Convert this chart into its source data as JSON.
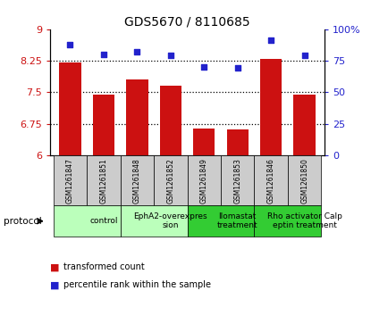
{
  "title": "GDS5670 / 8110685",
  "samples": [
    "GSM1261847",
    "GSM1261851",
    "GSM1261848",
    "GSM1261852",
    "GSM1261849",
    "GSM1261853",
    "GSM1261846",
    "GSM1261850"
  ],
  "bar_values": [
    8.2,
    7.45,
    7.8,
    7.65,
    6.63,
    6.62,
    8.3,
    7.45
  ],
  "scatter_values": [
    88,
    80,
    82,
    79,
    70,
    69,
    91,
    79
  ],
  "bar_color": "#cc1111",
  "scatter_color": "#2222cc",
  "ylim_left": [
    6,
    9
  ],
  "ylim_right": [
    0,
    100
  ],
  "yticks_left": [
    6,
    6.75,
    7.5,
    8.25,
    9
  ],
  "yticks_right": [
    0,
    25,
    50,
    75,
    100
  ],
  "ytick_labels_left": [
    "6",
    "6.75",
    "7.5",
    "8.25",
    "9"
  ],
  "ytick_labels_right": [
    "0",
    "25",
    "50",
    "75",
    "100%"
  ],
  "hlines": [
    6.75,
    7.5,
    8.25
  ],
  "protocol_groups": [
    {
      "label": "control",
      "start": 0,
      "end": 2,
      "color": "#bbffbb"
    },
    {
      "label": "EphA2-overexpres\nsion",
      "start": 2,
      "end": 4,
      "color": "#bbffbb"
    },
    {
      "label": "Ilomastat\ntreatment",
      "start": 4,
      "end": 6,
      "color": "#33cc33"
    },
    {
      "label": "Rho activator Calp\neptin treatment",
      "start": 6,
      "end": 8,
      "color": "#33cc33"
    }
  ],
  "sample_bg_color": "#cccccc",
  "legend_bar_label": "transformed count",
  "legend_scatter_label": "percentile rank within the sample",
  "protocol_label": "protocol",
  "background_color": "#ffffff"
}
